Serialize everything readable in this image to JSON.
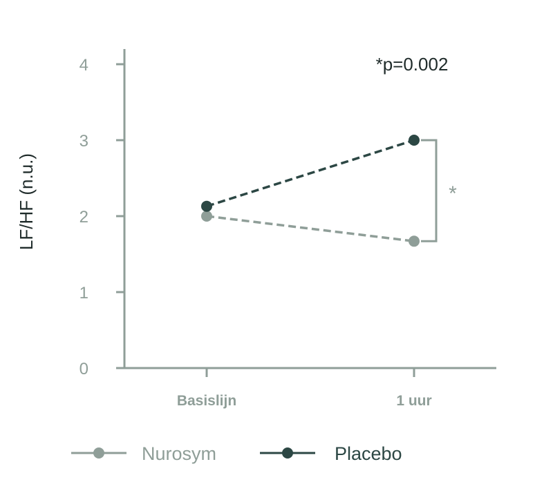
{
  "chart_data": {
    "type": "line",
    "ylabel": "LF/HF (n.u.)",
    "xlabel": "",
    "categories": [
      "Basislijn",
      "1 uur"
    ],
    "ylim": [
      0,
      4
    ],
    "yticks": [
      "0",
      "1",
      "2",
      "3",
      "4"
    ],
    "series": [
      {
        "name": "Nurosym",
        "values": [
          2.0,
          1.67
        ],
        "color": "#8f9e98"
      },
      {
        "name": "Placebo",
        "values": [
          2.13,
          3.0
        ],
        "color": "#2c4744"
      }
    ],
    "annotation": "*p=0.002",
    "significance_marker": "*",
    "grid": false,
    "legend_position": "bottom"
  }
}
